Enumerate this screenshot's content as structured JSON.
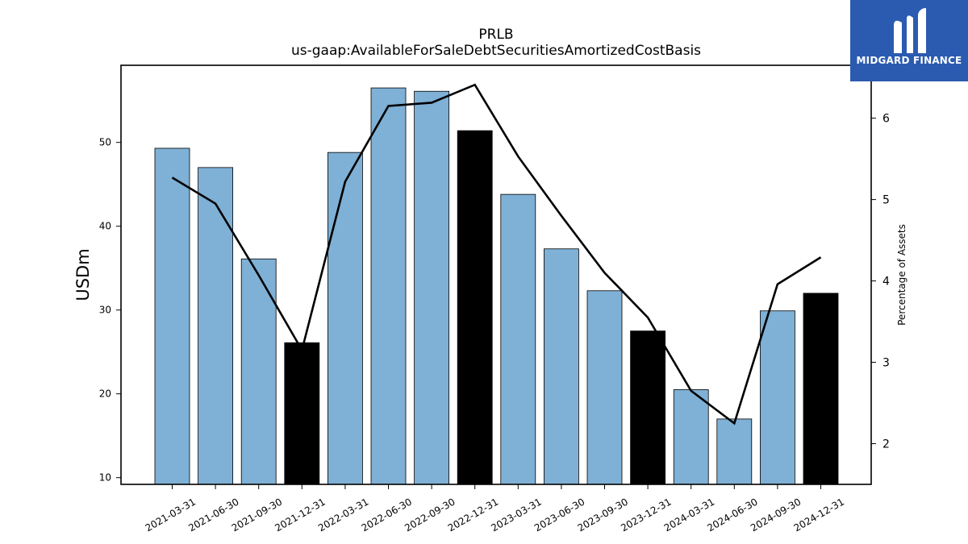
{
  "logo": {
    "text": "MIDGARD FINANCE",
    "color": "#2b5bb0"
  },
  "chart_data": {
    "type": "bar",
    "title": "PRLB",
    "subtitle": "us-gaap:AvailableForSaleDebtSecuritiesAmortizedCostBasis",
    "ylabel": "USDm",
    "y2label": "Percentage of Assets",
    "ylim": [
      9.2,
      59.2
    ],
    "y2lim": [
      1.5,
      6.65
    ],
    "yticks": [
      10,
      20,
      30,
      40,
      50
    ],
    "y2ticks": [
      2,
      3,
      4,
      5,
      6
    ],
    "categories": [
      "2021-03-31",
      "2021-06-30",
      "2021-09-30",
      "2021-12-31",
      "2022-03-31",
      "2022-06-30",
      "2022-09-30",
      "2022-12-31",
      "2023-03-31",
      "2023-06-30",
      "2023-09-30",
      "2023-12-31",
      "2024-03-31",
      "2024-06-30",
      "2024-09-30",
      "2024-12-31"
    ],
    "series": [
      {
        "type": "bar",
        "values": [
          49.3,
          47.0,
          36.1,
          26.1,
          48.8,
          56.5,
          56.1,
          51.4,
          43.8,
          37.3,
          32.3,
          27.5,
          20.5,
          17.0,
          29.9,
          32.0
        ],
        "colors": [
          "#7fb0d5",
          "#7fb0d5",
          "#7fb0d5",
          "#000000",
          "#7fb0d5",
          "#7fb0d5",
          "#7fb0d5",
          "#000000",
          "#7fb0d5",
          "#7fb0d5",
          "#7fb0d5",
          "#000000",
          "#7fb0d5",
          "#7fb0d5",
          "#7fb0d5",
          "#000000"
        ]
      },
      {
        "type": "line",
        "axis": "right",
        "values": [
          5.27,
          4.95,
          4.07,
          3.15,
          5.22,
          6.15,
          6.19,
          6.41,
          5.53,
          4.8,
          4.1,
          3.55,
          2.65,
          2.25,
          3.96,
          4.29
        ],
        "color": "#000000"
      }
    ],
    "grid": false,
    "legend": "none"
  }
}
